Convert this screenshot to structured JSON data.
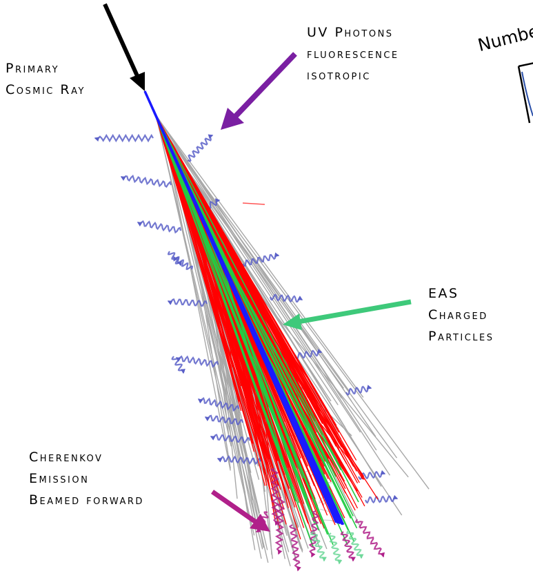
{
  "labels": {
    "primary": [
      "Primary",
      "Cosmic Ray"
    ],
    "uv": [
      "UV Photons",
      "fluorescence",
      "isotropic"
    ],
    "eas": [
      "EAS",
      "Charged",
      "Particles"
    ],
    "cherenkov": [
      "Cherenkov",
      "Emission",
      "Beamed forward"
    ],
    "number": "Numbe"
  },
  "colors": {
    "primary_arrow": "#000000",
    "uv_arrow": "#7a1fa2",
    "eas_arrow": "#3ec97a",
    "cherenkov_arrow": "#b0208a",
    "electromagnetic_tracks": "#ff0000",
    "hadronic_tracks": "#1a1aff",
    "muon_tracks": "#22cc44",
    "neutral_tracks": "#a8a8a8",
    "uv_photons": "#5a60c8",
    "cherenkov_photons": "#b0208a"
  }
}
